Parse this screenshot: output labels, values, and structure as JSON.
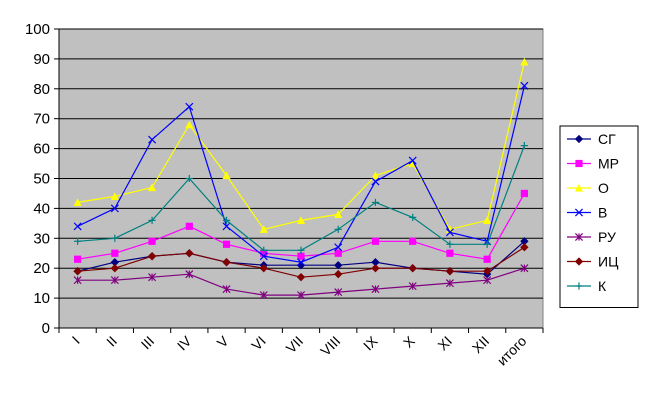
{
  "chart_data": {
    "type": "line",
    "title": "",
    "xlabel": "",
    "ylabel": "",
    "ylim": [
      0,
      100
    ],
    "ytick_step": 10,
    "grid": true,
    "legend_position": "right",
    "plot_background": "#c0c0c0",
    "categories": [
      "I",
      "II",
      "III",
      "IV",
      "V",
      "VI",
      "VII",
      "VIII",
      "IX",
      "X",
      "XI",
      "XII",
      "итого"
    ],
    "y_ticks": [
      "0",
      "10",
      "20",
      "30",
      "40",
      "50",
      "60",
      "70",
      "80",
      "90",
      "100"
    ],
    "series": [
      {
        "name": "СГ",
        "color": "#000080",
        "marker": "diamond",
        "values": [
          19,
          22,
          24,
          25,
          22,
          21,
          21,
          21,
          22,
          20,
          19,
          18,
          29
        ]
      },
      {
        "name": "МР",
        "color": "#ff00ff",
        "marker": "square",
        "values": [
          23,
          25,
          29,
          34,
          28,
          25,
          24,
          25,
          29,
          29,
          25,
          23,
          45
        ]
      },
      {
        "name": "О",
        "color": "#ffff00",
        "marker": "triangle",
        "values": [
          42,
          44,
          47,
          68,
          51,
          33,
          36,
          38,
          51,
          55,
          33,
          36,
          89
        ]
      },
      {
        "name": "В",
        "color": "#0000ff",
        "marker": "x",
        "values": [
          34,
          40,
          63,
          74,
          34,
          24,
          22,
          27,
          49,
          56,
          32,
          29,
          81
        ]
      },
      {
        "name": "РУ",
        "color": "#800080",
        "marker": "star",
        "values": [
          16,
          16,
          17,
          18,
          13,
          11,
          11,
          12,
          13,
          14,
          15,
          16,
          20
        ]
      },
      {
        "name": "ИЦ",
        "color": "#800000",
        "marker": "diamond",
        "values": [
          19,
          20,
          24,
          25,
          22,
          20,
          17,
          18,
          20,
          20,
          19,
          19,
          27
        ]
      },
      {
        "name": "К",
        "color": "#008080",
        "marker": "plus",
        "values": [
          29,
          30,
          36,
          50,
          36,
          26,
          26,
          33,
          42,
          37,
          28,
          28,
          61
        ]
      }
    ]
  }
}
